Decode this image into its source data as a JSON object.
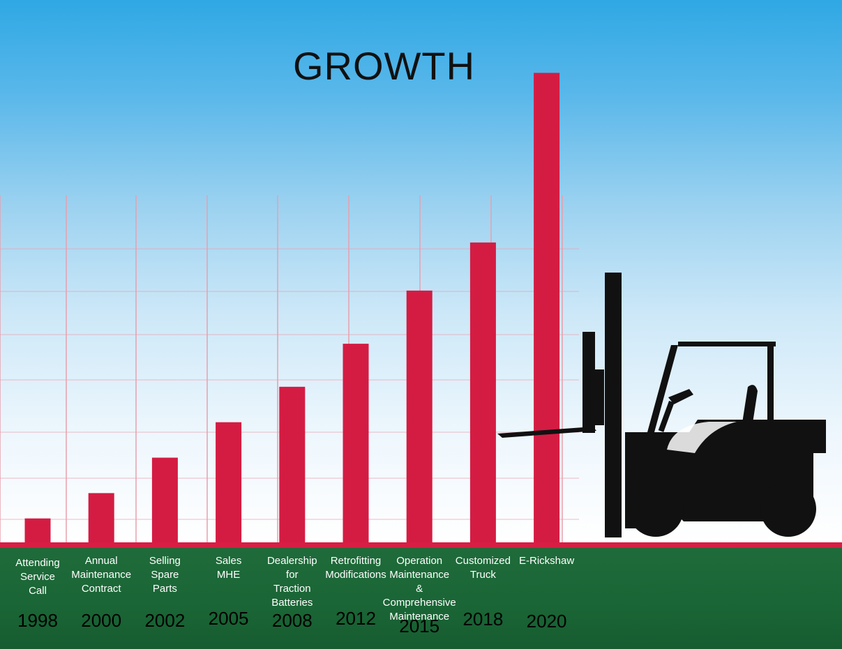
{
  "chart_data": {
    "type": "bar",
    "title": "GROWTH",
    "categories": [
      [
        "Attending",
        "Service",
        "Call"
      ],
      [
        "Annual",
        "Maintenance",
        "Contract"
      ],
      [
        "Selling",
        "Spare",
        "Parts"
      ],
      [
        "Sales",
        "MHE"
      ],
      [
        "Dealership",
        "for",
        "Traction",
        "Batteries"
      ],
      [
        "Retrofitting",
        "Modifications"
      ],
      [
        "Operation",
        "Maintenance",
        "&",
        "Comprehensive",
        "Maintenance"
      ],
      [
        "Customized",
        "Truck"
      ],
      [
        "E-Rickshaw"
      ]
    ],
    "years": [
      "1998",
      "2000",
      "2002",
      "2005",
      "2008",
      "2012",
      "2015",
      "2018",
      "2020"
    ],
    "values": [
      1,
      2,
      3.4,
      4.8,
      6.2,
      7.9,
      10,
      11.9,
      18.6
    ],
    "ylim": [
      0,
      19
    ],
    "grid": true,
    "colors": {
      "bar": "#d41c43",
      "grid": "#e8a0ae"
    }
  }
}
